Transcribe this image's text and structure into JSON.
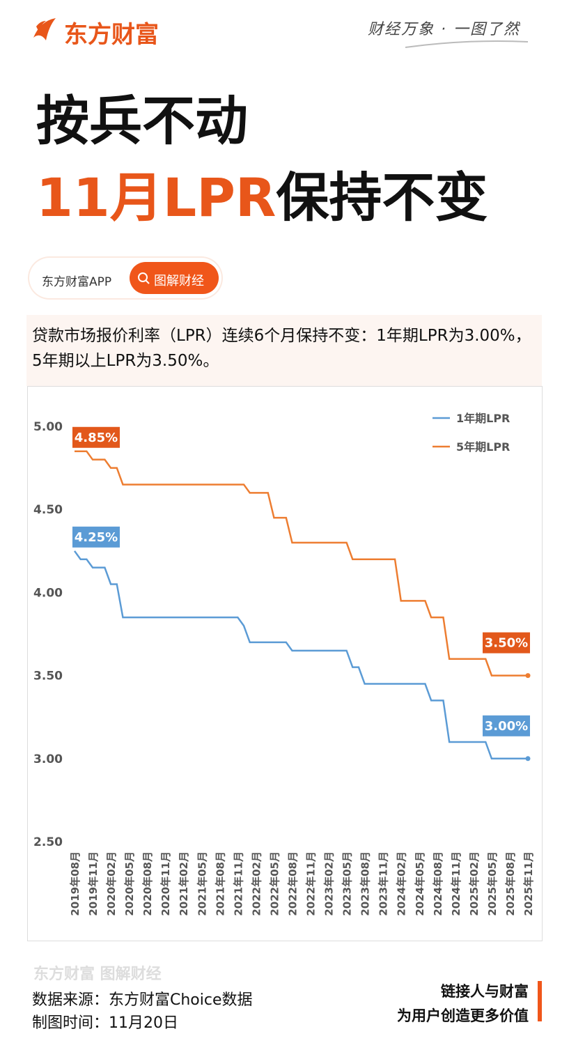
{
  "header": {
    "brand": "东方财富",
    "slogan": "财经万象 · 一图了然",
    "title_line1": "按兵不动",
    "title_line2_highlight": "11月LPR",
    "title_line2_rest": "保持不变",
    "tag_app": "东方财富APP",
    "tag_button": "图解财经"
  },
  "summary": "贷款市场报价利率（LPR）连续6个月保持不变：1年期LPR为3.00%，5年期以上LPR为3.50%。",
  "chart_data": {
    "type": "line",
    "categories": [
      "2019年08月",
      null,
      null,
      "2019年11月",
      null,
      null,
      "2020年02月",
      null,
      null,
      "2020年05月",
      null,
      null,
      "2020年08月",
      null,
      null,
      "2020年11月",
      null,
      null,
      "2021年02月",
      null,
      null,
      "2021年05月",
      null,
      null,
      "2021年08月",
      null,
      null,
      "2021年11月",
      null,
      null,
      "2022年02月",
      null,
      null,
      "2022年05月",
      null,
      null,
      "2022年08月",
      null,
      null,
      "2022年11月",
      null,
      null,
      "2023年02月",
      null,
      null,
      "2023年05月",
      null,
      null,
      "2023年08月",
      null,
      null,
      "2023年11月",
      null,
      null,
      "2024年02月",
      null,
      null,
      "2024年05月",
      null,
      null,
      "2024年08月",
      null,
      null,
      "2024年11月",
      null,
      null,
      "2025年02月",
      null,
      null,
      "2025年05月",
      null,
      null,
      "2025年08月",
      null,
      null,
      "2025年11月"
    ],
    "series": [
      {
        "name": "1年期LPR",
        "color": "#5b9bd5",
        "values": [
          4.25,
          4.2,
          4.2,
          4.15,
          4.15,
          4.15,
          4.05,
          4.05,
          3.85,
          3.85,
          3.85,
          3.85,
          3.85,
          3.85,
          3.85,
          3.85,
          3.85,
          3.85,
          3.85,
          3.85,
          3.85,
          3.85,
          3.85,
          3.85,
          3.85,
          3.85,
          3.85,
          3.85,
          3.8,
          3.7,
          3.7,
          3.7,
          3.7,
          3.7,
          3.7,
          3.7,
          3.65,
          3.65,
          3.65,
          3.65,
          3.65,
          3.65,
          3.65,
          3.65,
          3.65,
          3.65,
          3.55,
          3.55,
          3.45,
          3.45,
          3.45,
          3.45,
          3.45,
          3.45,
          3.45,
          3.45,
          3.45,
          3.45,
          3.45,
          3.35,
          3.35,
          3.35,
          3.1,
          3.1,
          3.1,
          3.1,
          3.1,
          3.1,
          3.1,
          3.0,
          3.0,
          3.0,
          3.0,
          3.0,
          3.0,
          3.0
        ],
        "value_labels": [
          "4.25%",
          null,
          null,
          null,
          null,
          null,
          null,
          null,
          null,
          null,
          null,
          null,
          null,
          null,
          null,
          null,
          null,
          null,
          null,
          null,
          null,
          null,
          null,
          null,
          null,
          null,
          null,
          null,
          null,
          null,
          null,
          null,
          null,
          null,
          null,
          null,
          null,
          null,
          null,
          null,
          null,
          null,
          null,
          null,
          null,
          null,
          null,
          null,
          null,
          null,
          null,
          null,
          null,
          null,
          null,
          null,
          null,
          null,
          null,
          null,
          null,
          null,
          null,
          null,
          null,
          null,
          null,
          null,
          null,
          null,
          null,
          null,
          null,
          null,
          null,
          "3.00%"
        ]
      },
      {
        "name": "5年期LPR",
        "color": "#ed7d31",
        "label_color": "#e2581b",
        "values": [
          4.85,
          4.85,
          4.85,
          4.8,
          4.8,
          4.8,
          4.75,
          4.75,
          4.65,
          4.65,
          4.65,
          4.65,
          4.65,
          4.65,
          4.65,
          4.65,
          4.65,
          4.65,
          4.65,
          4.65,
          4.65,
          4.65,
          4.65,
          4.65,
          4.65,
          4.65,
          4.65,
          4.65,
          4.65,
          4.6,
          4.6,
          4.6,
          4.6,
          4.45,
          4.45,
          4.45,
          4.3,
          4.3,
          4.3,
          4.3,
          4.3,
          4.3,
          4.3,
          4.3,
          4.3,
          4.3,
          4.2,
          4.2,
          4.2,
          4.2,
          4.2,
          4.2,
          4.2,
          4.2,
          3.95,
          3.95,
          3.95,
          3.95,
          3.95,
          3.85,
          3.85,
          3.85,
          3.6,
          3.6,
          3.6,
          3.6,
          3.6,
          3.6,
          3.6,
          3.5,
          3.5,
          3.5,
          3.5,
          3.5,
          3.5,
          3.5
        ],
        "value_labels": [
          "4.85%",
          null,
          null,
          null,
          null,
          null,
          null,
          null,
          null,
          null,
          null,
          null,
          null,
          null,
          null,
          null,
          null,
          null,
          null,
          null,
          null,
          null,
          null,
          null,
          null,
          null,
          null,
          null,
          null,
          null,
          null,
          null,
          null,
          null,
          null,
          null,
          null,
          null,
          null,
          null,
          null,
          null,
          null,
          null,
          null,
          null,
          null,
          null,
          null,
          null,
          null,
          null,
          null,
          null,
          null,
          null,
          null,
          null,
          null,
          null,
          null,
          null,
          null,
          null,
          null,
          null,
          null,
          null,
          null,
          null,
          null,
          null,
          null,
          null,
          null,
          "3.50%"
        ]
      }
    ],
    "ylim": [
      2.5,
      5.0
    ],
    "yticks": [
      {
        "value": 2.5,
        "label": "2.50"
      },
      {
        "value": 3.0,
        "label": "3.00"
      },
      {
        "value": 3.5,
        "label": "3.50"
      },
      {
        "value": 4.0,
        "label": "4.00"
      },
      {
        "value": 4.5,
        "label": "4.50"
      },
      {
        "value": 5.0,
        "label": "5.00"
      }
    ],
    "grid": false,
    "legend": "top-right"
  },
  "footer": {
    "watermark": "东方财富 图解财经",
    "source": "数据来源：东方财富Choice数据",
    "date": "制图时间：11月20日",
    "motto_line1": "链接人与财富",
    "motto_line2": "为用户创造更多价值"
  }
}
